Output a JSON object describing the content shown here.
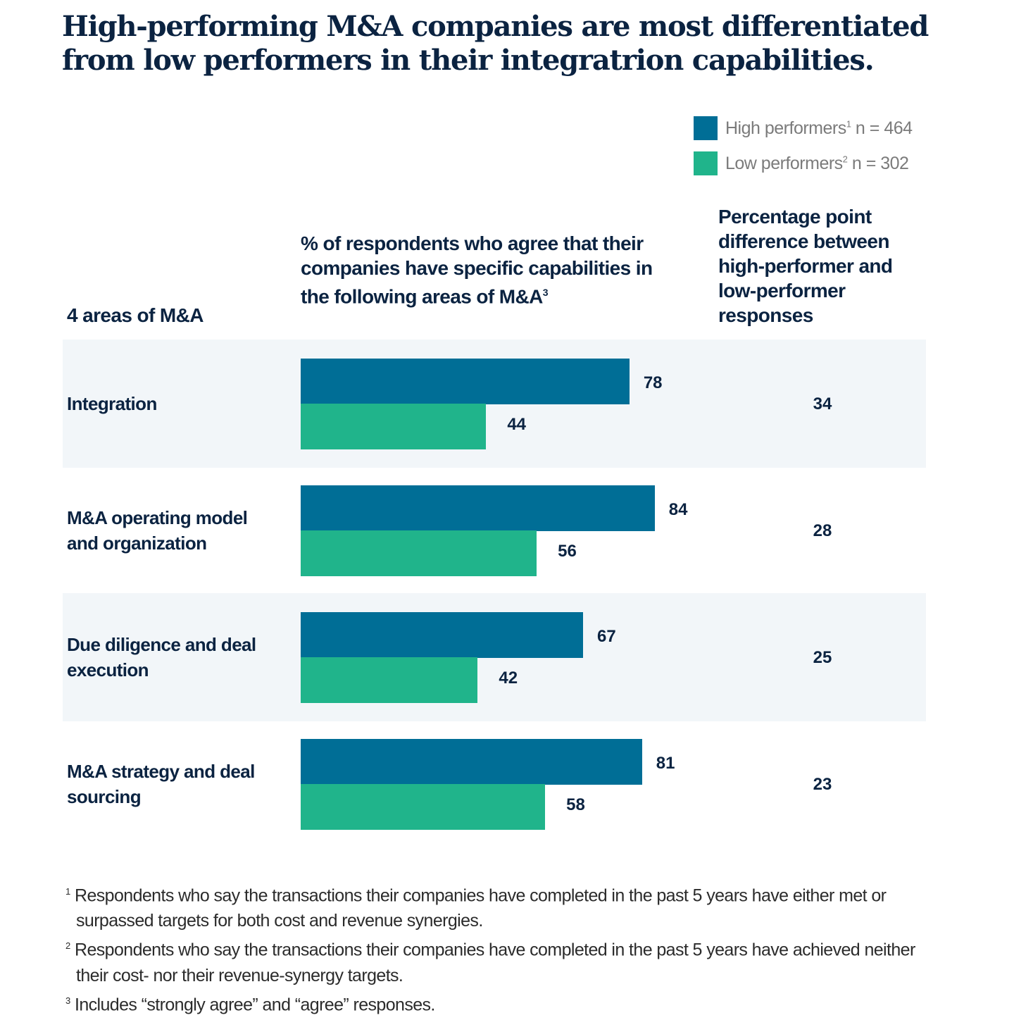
{
  "title": "High-performing M&A companies are most differentiated from low performers in their integratrion capabilities.",
  "legend": [
    {
      "label": "High performers",
      "sup": "1",
      "n": "n = 464",
      "color": "#006e96"
    },
    {
      "label": "Low performers",
      "sup": "2",
      "n": "n = 302",
      "color": "#20b48b"
    }
  ],
  "headers": {
    "areas": "4 areas of M&A",
    "percent": "% of respondents who agree that their companies have specific capabilities in the following areas of M&A",
    "percent_sup": "3",
    "diff": "Percentage point difference between high-performer and low-performer responses"
  },
  "chart_data": {
    "type": "bar",
    "orientation": "horizontal",
    "categories": [
      "Integration",
      "M&A operating model and organization",
      "Due diligence and deal execution",
      "M&A strategy and deal sourcing"
    ],
    "series": [
      {
        "name": "High performers",
        "values": [
          78,
          84,
          67,
          81
        ]
      },
      {
        "name": "Low performers",
        "values": [
          44,
          56,
          42,
          58
        ]
      }
    ],
    "difference": [
      34,
      28,
      25,
      23
    ],
    "xlim": [
      0,
      100
    ],
    "grid": false,
    "legend_position": "top-right",
    "colors": {
      "high": "#006e96",
      "low": "#20b48b",
      "row_shade": "#f2f6f9"
    }
  },
  "footnotes": [
    {
      "sup": "1",
      "text": "Respondents who say the transactions their companies have completed in the past 5 years have either met or surpassed targets for both cost and revenue synergies."
    },
    {
      "sup": "2",
      "text": "Respondents who say the transactions their companies have completed in the past 5 years have achieved neither their cost- nor their revenue-synergy targets."
    },
    {
      "sup": "3",
      "text": "Includes “strongly agree” and “agree” responses."
    }
  ]
}
